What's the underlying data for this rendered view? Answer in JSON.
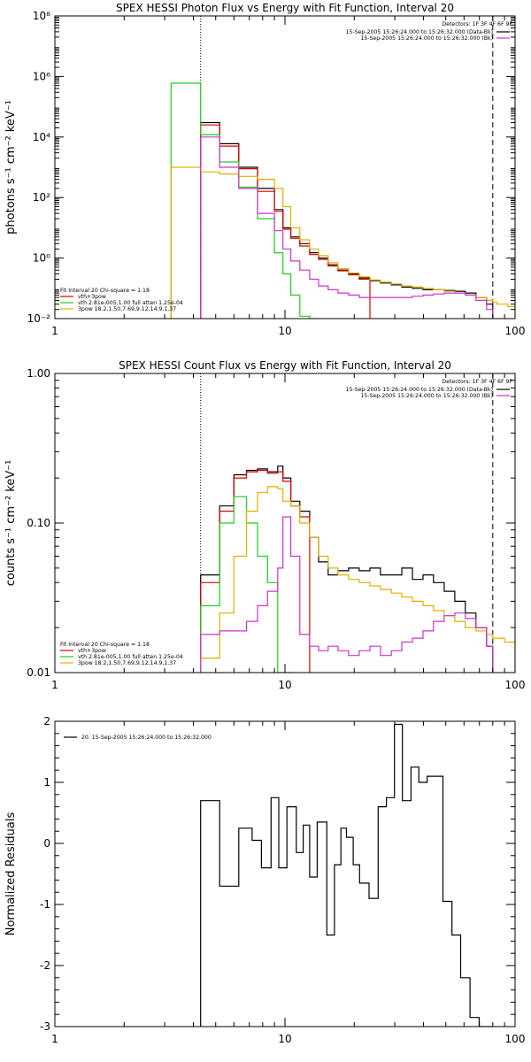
{
  "chart_data": [
    {
      "type": "line",
      "step": true,
      "title": "SPEX HESSI Photon Flux vs Energy with Fit Function, Interval 20",
      "xlabel": "",
      "ylabel": "photons s⁻¹ cm⁻² keV⁻¹",
      "xscale": "log",
      "yscale": "log",
      "xlim": [
        1,
        100
      ],
      "ylim": [
        0.01,
        100000000
      ],
      "xticks": [
        1,
        10,
        100
      ],
      "xtick_labels": [
        "1",
        "10",
        "100"
      ],
      "ytick_labels": [
        "10⁻²",
        "10⁰",
        "10²",
        "10⁴",
        "10⁶"
      ],
      "ytick_values": [
        0.01,
        1,
        100,
        10000,
        1000000
      ],
      "ytop_label": "10⁸",
      "vlines": [
        {
          "x": 4.3,
          "style": "dotted"
        },
        {
          "x": 80,
          "style": "dashed"
        }
      ],
      "legend_top_right": {
        "header": "Detectors: 1F 3F 4F 6F 9F",
        "entries": [
          {
            "text": "15-Sep-2005 15:26:24.000 to 15:26:32.000 (Data-Bk)",
            "color": "#000000"
          },
          {
            "text": "15-Sep-2005 15:26:24.000 to 15:26:32.000 (Bk)",
            "color": "#cc33cc"
          }
        ]
      },
      "legend_bottom_left": {
        "header": "Fit Interval 20   Chi-square = 1.18",
        "entries": [
          {
            "text": "vth+3pow",
            "color": "#dd0000"
          },
          {
            "text": "vth 2.81e-005,1.00  full atten 1.25e-04",
            "color": "#22cc22"
          },
          {
            "text": "3pow 18.2,1.50,7.69,9.12,14.9,1.37",
            "color": "#e0b000"
          }
        ]
      },
      "edges": [
        3.2,
        4.3,
        5.2,
        6.3,
        7.6,
        9.0,
        9.8,
        10.6,
        11.6,
        12.8,
        14.0,
        15.4,
        17.0,
        18.9,
        21.0,
        23.4,
        26.0,
        29.0,
        32.2,
        35.8,
        39.8,
        44.2,
        49.2,
        54.7,
        60.8,
        67.6,
        75.2,
        80.0,
        83.6,
        93.0,
        100.0
      ],
      "series": [
        {
          "color": "#000000",
          "values": [
            null,
            30000,
            6000,
            1000,
            200,
            40,
            10,
            5,
            3,
            1.5,
            1.0,
            0.6,
            0.4,
            0.3,
            0.22,
            0.18,
            0.15,
            0.13,
            0.11,
            0.1,
            0.09,
            0.09,
            0.085,
            0.08,
            0.07,
            0.05,
            0.03,
            null,
            null,
            null
          ]
        },
        {
          "color": "#dd0000",
          "values": [
            null,
            25000,
            5000,
            900,
            160,
            35,
            9,
            4.5,
            2.5,
            1.3,
            0.9,
            0.55,
            0.38,
            0.28,
            0.2,
            null,
            null,
            null,
            null,
            null,
            null,
            null,
            null,
            null,
            null,
            null,
            null,
            null,
            null,
            null
          ]
        },
        {
          "color": "#22cc22",
          "values": [
            600000,
            12000,
            1500,
            220,
            20,
            1.5,
            0.3,
            0.06,
            0.012,
            0.003,
            null,
            null,
            null,
            null,
            null,
            null,
            null,
            null,
            null,
            null,
            null,
            null,
            null,
            null,
            null,
            null,
            null,
            null,
            null,
            null
          ]
        },
        {
          "color": "#e0b000",
          "values": [
            1000,
            700,
            600,
            500,
            400,
            200,
            50,
            10,
            4,
            2,
            1.2,
            0.7,
            0.45,
            0.32,
            0.24,
            0.19,
            0.16,
            0.14,
            0.12,
            0.11,
            0.1,
            0.09,
            0.08,
            0.07,
            0.06,
            0.05,
            0.04,
            0.035,
            0.03,
            0.025
          ]
        },
        {
          "color": "#cc33cc",
          "values": [
            null,
            10000,
            1000,
            200,
            30,
            8,
            2,
            0.8,
            0.4,
            0.2,
            0.12,
            0.09,
            0.07,
            0.06,
            0.05,
            0.05,
            0.05,
            0.05,
            0.05,
            0.055,
            0.06,
            0.065,
            0.07,
            0.07,
            0.06,
            0.04,
            0.02,
            null,
            null,
            null
          ]
        }
      ]
    },
    {
      "type": "line",
      "step": true,
      "title": "SPEX HESSI Count Flux vs Energy with Fit Function, Interval 20",
      "xlabel": "",
      "ylabel": "counts s⁻¹ cm⁻² keV⁻¹",
      "xscale": "log",
      "yscale": "log",
      "xlim": [
        1,
        100
      ],
      "ylim": [
        0.01,
        1.0
      ],
      "xticks": [
        1,
        10,
        100
      ],
      "xtick_labels": [
        "1",
        "10",
        "100"
      ],
      "ytick_labels": [
        "0.01",
        "0.10",
        "1.00"
      ],
      "ytick_values": [
        0.01,
        0.1,
        1.0
      ],
      "vlines": [
        {
          "x": 4.3,
          "style": "dotted"
        },
        {
          "x": 80,
          "style": "dashed"
        }
      ],
      "legend_top_right": {
        "header": "Detectors: 1F 3F 4F 6F 9F",
        "entries": [
          {
            "text": "15-Sep-2005 15:26:24.000 to 15:26:32.000 (Data-Bk)",
            "color": "#000000"
          },
          {
            "text": "15-Sep-2005 15:26:24.000 to 15:26:32.000 (Bk)",
            "color": "#cc33cc"
          }
        ]
      },
      "legend_bottom_left": {
        "header": "Fit Interval 20   Chi-square = 1.18",
        "entries": [
          {
            "text": "vth+3pow",
            "color": "#dd0000"
          },
          {
            "text": "vth 2.81e-005,1.00  full atten 1.25e-04",
            "color": "#22cc22"
          },
          {
            "text": "3pow 18.2,1.50,7.69,9.12,14.9,1.37",
            "color": "#e0b000"
          }
        ]
      },
      "edges": [
        3.2,
        4.3,
        5.2,
        6.0,
        6.8,
        7.6,
        8.4,
        9.3,
        9.8,
        10.6,
        11.6,
        12.8,
        14.0,
        15.4,
        17.0,
        18.9,
        21.0,
        23.4,
        26.0,
        29.0,
        32.2,
        35.8,
        39.8,
        44.2,
        49.2,
        54.7,
        60.8,
        67.6,
        75.2,
        80.0,
        90.0,
        100.0
      ],
      "series": [
        {
          "color": "#000000",
          "values": [
            null,
            0.045,
            0.13,
            0.21,
            0.225,
            0.23,
            0.22,
            0.24,
            0.2,
            0.14,
            0.12,
            0.08,
            0.055,
            0.045,
            0.048,
            0.05,
            0.048,
            0.05,
            0.045,
            0.045,
            0.05,
            0.042,
            0.045,
            0.04,
            0.035,
            0.03,
            0.025,
            0.02,
            0.015,
            null,
            null
          ]
        },
        {
          "color": "#dd0000",
          "values": [
            null,
            0.04,
            0.12,
            0.2,
            0.22,
            0.225,
            0.215,
            0.22,
            0.19,
            0.13,
            0.11,
            null,
            null,
            null,
            null,
            null,
            null,
            null,
            null,
            null,
            null,
            null,
            null,
            null,
            null,
            null,
            null,
            null,
            null,
            null,
            null
          ]
        },
        {
          "color": "#22cc22",
          "values": [
            null,
            0.028,
            0.1,
            0.15,
            0.1,
            0.06,
            0.04,
            0.01,
            0.004,
            null,
            null,
            null,
            null,
            null,
            null,
            null,
            null,
            null,
            null,
            null,
            null,
            null,
            null,
            null,
            null,
            null,
            null,
            null,
            null,
            null,
            null
          ]
        },
        {
          "color": "#e0b000",
          "values": [
            null,
            0.0125,
            0.025,
            0.06,
            0.12,
            0.16,
            0.175,
            0.17,
            0.14,
            0.13,
            0.1,
            0.08,
            0.06,
            0.05,
            0.045,
            0.042,
            0.04,
            0.038,
            0.036,
            0.034,
            0.032,
            0.03,
            0.028,
            0.026,
            0.024,
            0.022,
            0.02,
            0.019,
            0.018,
            0.017,
            0.016
          ]
        },
        {
          "color": "#cc33cc",
          "values": [
            null,
            0.018,
            0.019,
            0.019,
            0.022,
            0.028,
            0.035,
            0.05,
            0.11,
            0.06,
            0.018,
            0.015,
            0.014,
            0.015,
            0.014,
            0.013,
            0.014,
            0.015,
            0.013,
            0.014,
            0.016,
            0.017,
            0.019,
            0.022,
            0.024,
            0.025,
            0.023,
            0.02,
            0.015,
            null,
            null
          ]
        }
      ]
    },
    {
      "type": "line",
      "step": true,
      "title": "",
      "xlabel": "",
      "ylabel": "Normalized Residuals",
      "xscale": "log",
      "yscale": "linear",
      "xlim": [
        1,
        100
      ],
      "ylim": [
        -3,
        2
      ],
      "xticks": [
        1,
        10,
        100
      ],
      "xtick_labels": [
        "1",
        "10",
        "100"
      ],
      "ytick_values": [
        -3,
        -2,
        -1,
        0,
        1,
        2
      ],
      "ytick_labels": [
        "-3",
        "-2",
        "-1",
        "0",
        "1",
        "2"
      ],
      "legend": {
        "entries": [
          {
            "text": "20. 15-Sep-2005 15:26:24.000 to 15:26:32.000",
            "color": "#000000"
          }
        ]
      },
      "edges": [
        4.3,
        5.2,
        6.3,
        7.2,
        7.9,
        8.7,
        9.4,
        10.2,
        11.2,
        12.0,
        12.8,
        13.8,
        15.2,
        16.4,
        17.5,
        18.5,
        19.8,
        21.1,
        23.2,
        25.4,
        27.6,
        29.9,
        32.4,
        35.3,
        38.2,
        41.5,
        45.0,
        48.6,
        53.2,
        58.0,
        63.7,
        69.8,
        76.0,
        80.0
      ],
      "series": [
        {
          "color": "#000000",
          "values": [
            0.7,
            -0.7,
            0.25,
            0.05,
            -0.4,
            0.75,
            -0.4,
            0.6,
            -0.15,
            0.3,
            -0.55,
            0.35,
            -1.5,
            -0.35,
            0.25,
            0.1,
            -0.35,
            -0.65,
            -0.9,
            0.6,
            0.75,
            1.95,
            0.7,
            1.25,
            1.0,
            1.1,
            1.1,
            -0.95,
            -1.5,
            -2.2,
            -2.85,
            -3.0,
            -3.0
          ]
        }
      ]
    }
  ]
}
